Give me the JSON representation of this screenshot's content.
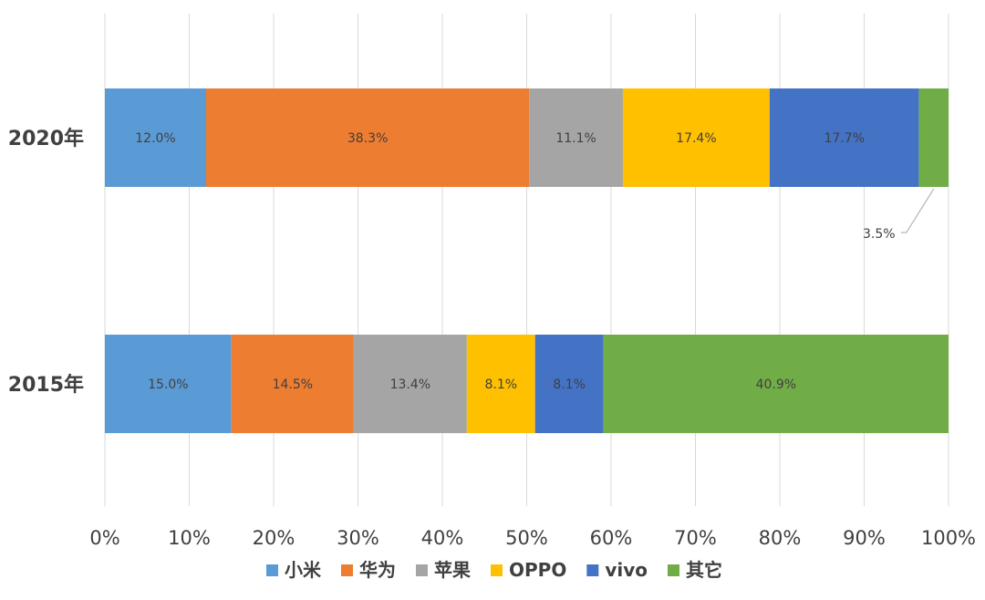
{
  "chart_data": {
    "type": "bar",
    "orientation": "horizontal",
    "stacked": "percent",
    "title": "",
    "xlabel": "",
    "ylabel": "",
    "xlim": [
      0,
      100
    ],
    "x_ticks": [
      "0%",
      "10%",
      "20%",
      "30%",
      "40%",
      "50%",
      "60%",
      "70%",
      "80%",
      "90%",
      "100%"
    ],
    "grid": true,
    "legend_position": "bottom",
    "categories": [
      "2020年",
      "2015年"
    ],
    "series": [
      {
        "name": "小米",
        "color": "#5b9bd5",
        "values": [
          12.0,
          15.0
        ],
        "labels": [
          "12.0%",
          "15.0%"
        ]
      },
      {
        "name": "华为",
        "color": "#ed7d31",
        "values": [
          38.3,
          14.5
        ],
        "labels": [
          "38.3%",
          "14.5%"
        ]
      },
      {
        "name": "苹果",
        "color": "#a5a5a5",
        "values": [
          11.1,
          13.4
        ],
        "labels": [
          "11.1%",
          "13.4%"
        ]
      },
      {
        "name": "OPPO",
        "color": "#ffc000",
        "values": [
          17.4,
          8.1
        ],
        "labels": [
          "17.4%",
          "8.1%"
        ]
      },
      {
        "name": "vivo",
        "color": "#4472c4",
        "values": [
          17.7,
          8.1
        ],
        "labels": [
          "17.7%",
          "8.1%"
        ]
      },
      {
        "name": "其它",
        "color": "#70ad47",
        "values": [
          3.5,
          40.9
        ],
        "labels": [
          "3.5%",
          "40.9%"
        ]
      }
    ]
  }
}
